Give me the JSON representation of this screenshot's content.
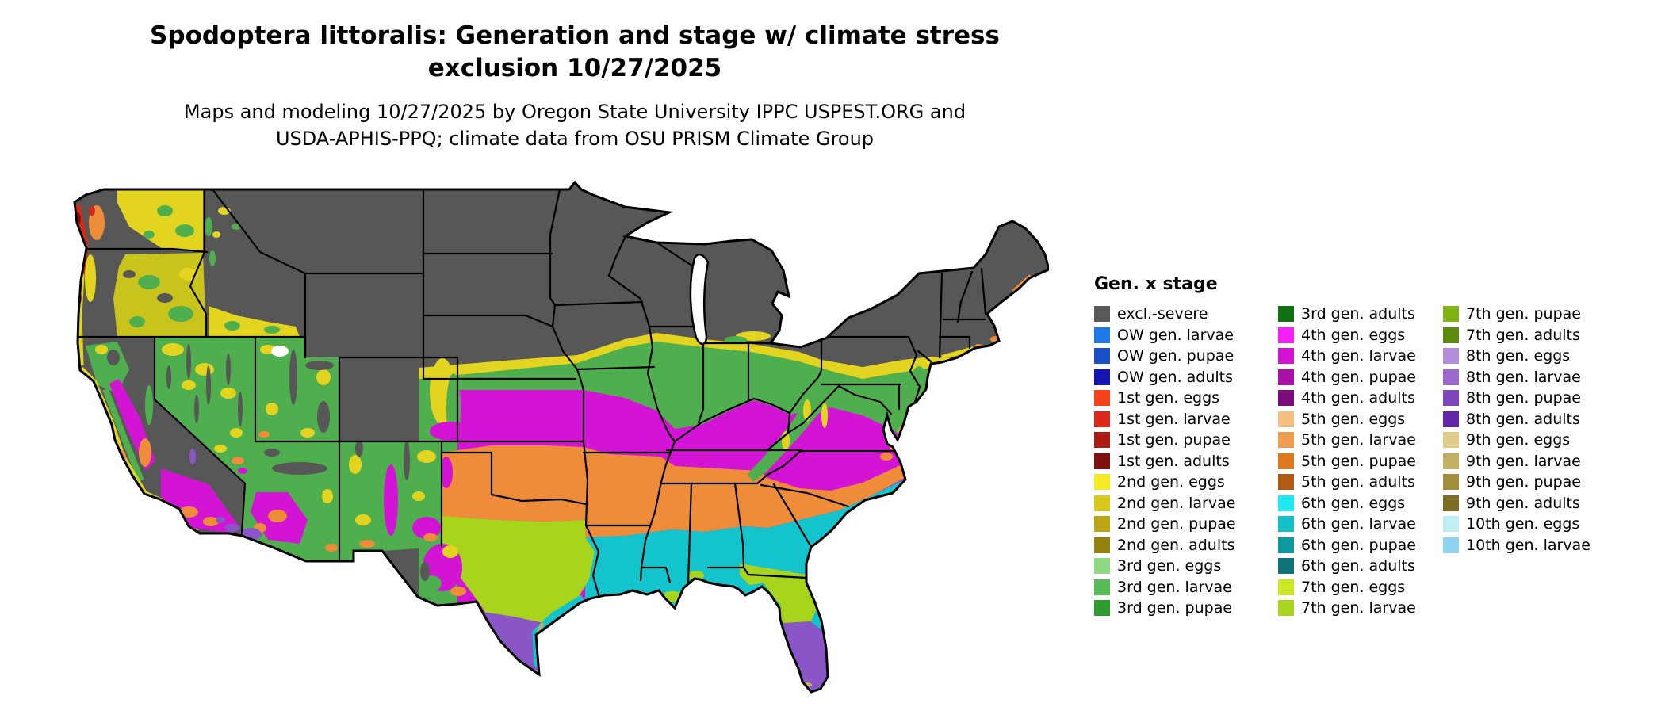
{
  "title": {
    "line1": "Spodoptera littoralis: Generation and stage w/ climate stress",
    "line2": "exclusion 10/27/2025"
  },
  "subtitle": {
    "line1": "Maps and modeling 10/27/2025 by Oregon State University IPPC USPEST.ORG and",
    "line2": "USDA-APHIS-PPQ; climate data from OSU PRISM Climate Group"
  },
  "legend": {
    "title": "Gen. x stage",
    "columns": [
      [
        {
          "label": "excl.-severe",
          "color": "#595959"
        },
        {
          "label": "OW gen. larvae",
          "color": "#1E78E8"
        },
        {
          "label": "OW gen. pupae",
          "color": "#1A50C8"
        },
        {
          "label": "OW gen. adults",
          "color": "#1414B0"
        },
        {
          "label": "1st gen. eggs",
          "color": "#F5431E"
        },
        {
          "label": "1st gen. larvae",
          "color": "#DC2818"
        },
        {
          "label": "1st gen. pupae",
          "color": "#AD1A12"
        },
        {
          "label": "1st gen. adults",
          "color": "#7E120E"
        },
        {
          "label": "2nd gen. eggs",
          "color": "#F5EB25"
        },
        {
          "label": "2nd gen. larvae",
          "color": "#D9C91E"
        },
        {
          "label": "2nd gen. pupae",
          "color": "#BCA514"
        },
        {
          "label": "2nd gen. adults",
          "color": "#94820E"
        },
        {
          "label": "3rd gen. eggs",
          "color": "#8FD984"
        },
        {
          "label": "3rd gen. larvae",
          "color": "#57BC57"
        },
        {
          "label": "3rd gen. pupae",
          "color": "#2E9B2E"
        }
      ],
      [
        {
          "label": "3rd gen. adults",
          "color": "#117011"
        },
        {
          "label": "4th gen. eggs",
          "color": "#F520F5"
        },
        {
          "label": "4th gen. larvae",
          "color": "#D414D4"
        },
        {
          "label": "4th gen. pupae",
          "color": "#A810A8"
        },
        {
          "label": "4th gen. adults",
          "color": "#7C0C7C"
        },
        {
          "label": "5th gen. eggs",
          "color": "#F7C083"
        },
        {
          "label": "5th gen. larvae",
          "color": "#F09C4E"
        },
        {
          "label": "5th gen. pupae",
          "color": "#DC781E"
        },
        {
          "label": "5th gen. adults",
          "color": "#B05A14"
        },
        {
          "label": "6th gen. eggs",
          "color": "#1EE8F0"
        },
        {
          "label": "6th gen. larvae",
          "color": "#14C0C8"
        },
        {
          "label": "6th gen. pupae",
          "color": "#109AA0"
        },
        {
          "label": "6th gen. adults",
          "color": "#0E7278"
        },
        {
          "label": "7th gen. eggs",
          "color": "#CDE827"
        },
        {
          "label": "7th gen. larvae",
          "color": "#A8D41E"
        }
      ],
      [
        {
          "label": "7th gen. pupae",
          "color": "#7FB414"
        },
        {
          "label": "7th gen. adults",
          "color": "#5C8A0E"
        },
        {
          "label": "8th gen. eggs",
          "color": "#B58EDD"
        },
        {
          "label": "8th gen. larvae",
          "color": "#9C69CF"
        },
        {
          "label": "8th gen. pupae",
          "color": "#7F46BE"
        },
        {
          "label": "8th gen. adults",
          "color": "#6224A8"
        },
        {
          "label": "9th gen. eggs",
          "color": "#E0CC88"
        },
        {
          "label": "9th gen. larvae",
          "color": "#C2AF62"
        },
        {
          "label": "9th gen. pupae",
          "color": "#A28F3D"
        },
        {
          "label": "9th gen. adults",
          "color": "#7D6C24"
        },
        {
          "label": "10th gen. eggs",
          "color": "#BFEFF5"
        },
        {
          "label": "10th gen. larvae",
          "color": "#8FD2F0"
        }
      ]
    ]
  }
}
